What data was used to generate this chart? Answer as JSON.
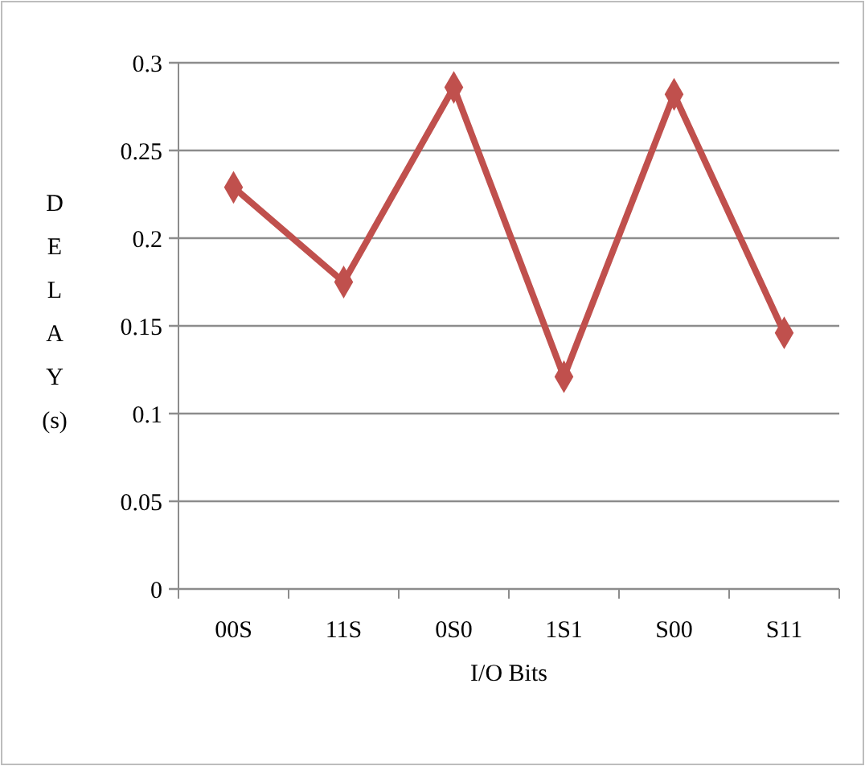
{
  "chart_data": {
    "type": "line",
    "xlabel": "I/O Bits",
    "ylabel": "DELAY (s)",
    "categories": [
      "00S",
      "11S",
      "0S0",
      "1S1",
      "S00",
      "S11"
    ],
    "series": [
      {
        "color": "#c0504d",
        "values": [
          0.229,
          0.175,
          0.286,
          0.121,
          0.282,
          0.146
        ]
      }
    ],
    "ylim": [
      0,
      0.3
    ],
    "yticks": [
      0,
      0.05,
      0.1,
      0.15,
      0.2,
      0.25,
      0.3
    ],
    "grid": "y",
    "marker": "diamond",
    "line_style": "solid"
  }
}
